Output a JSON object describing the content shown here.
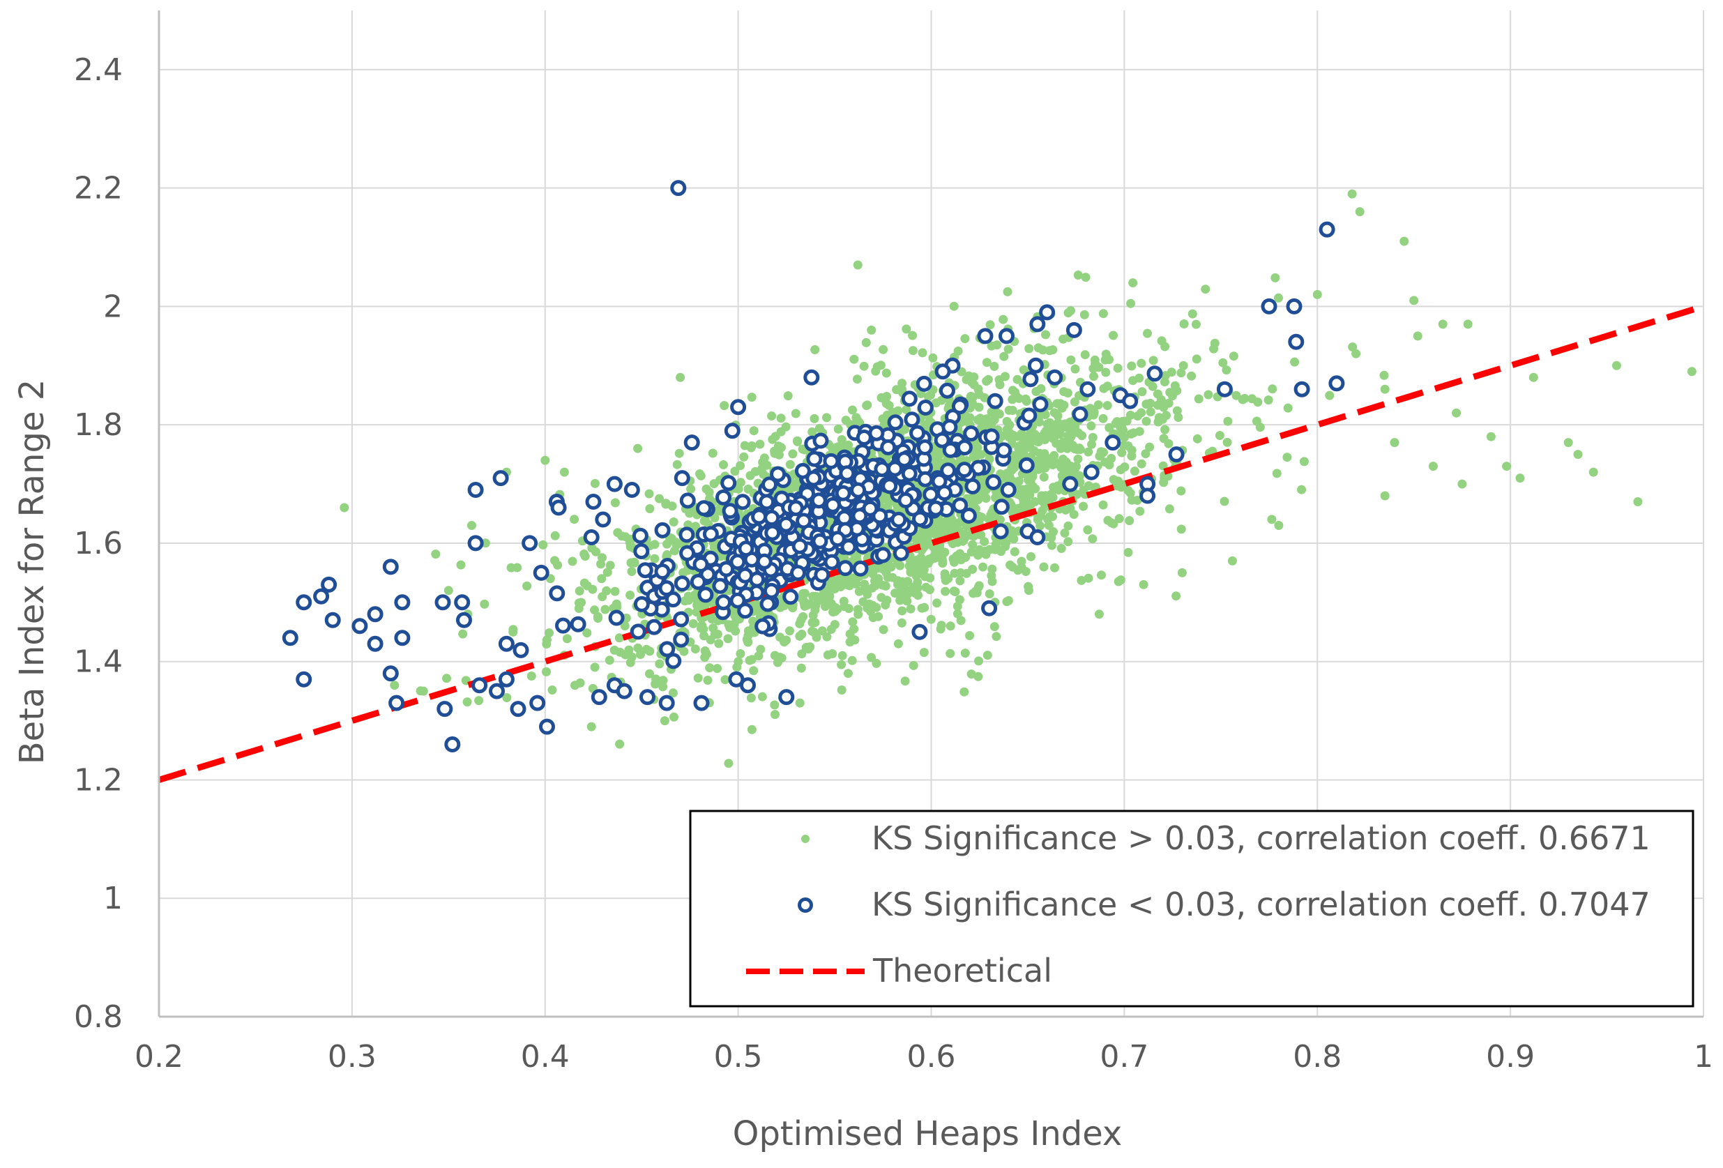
{
  "chart_data": {
    "type": "scatter",
    "title": "",
    "xlabel": "Optimised Heaps Index",
    "ylabel": "Beta Index for Range 2",
    "xlim": [
      0.2,
      1.0
    ],
    "ylim": [
      0.8,
      2.5
    ],
    "x_ticks": [
      "0.2",
      "0.3",
      "0.4",
      "0.5",
      "0.6",
      "0.7",
      "0.8",
      "0.9",
      "1"
    ],
    "y_ticks": [
      "0.8",
      "1",
      "1.2",
      "1.4",
      "1.6",
      "1.8",
      "2",
      "2.2",
      "2.4"
    ],
    "grid": true,
    "legend_position": "bottom-right",
    "series": [
      {
        "name": "KS Significance > 0.03, correlation coeff. 0.6671",
        "marker": "filled-circle",
        "color": "#92d280",
        "generated_cloud": {
          "count": 2600,
          "x_center": 0.575,
          "x_spread": 0.075,
          "slope": 1.05,
          "intercept": 1.05,
          "residual_spread": 0.1
        },
        "points": [
          [
            0.296,
            1.66
          ],
          [
            0.424,
            1.29
          ],
          [
            0.462,
            1.3
          ],
          [
            0.562,
            2.07
          ],
          [
            0.569,
            1.96
          ],
          [
            0.818,
            2.19
          ],
          [
            0.822,
            2.16
          ],
          [
            0.835,
            1.86
          ],
          [
            0.845,
            2.11
          ],
          [
            0.85,
            2.01
          ],
          [
            0.852,
            1.95
          ],
          [
            0.865,
            1.97
          ],
          [
            0.872,
            1.82
          ],
          [
            0.878,
            1.97
          ],
          [
            0.89,
            1.78
          ],
          [
            0.898,
            1.73
          ],
          [
            0.905,
            1.71
          ],
          [
            0.912,
            1.88
          ],
          [
            0.93,
            1.77
          ],
          [
            0.935,
            1.75
          ],
          [
            0.943,
            1.72
          ],
          [
            0.955,
            1.9
          ],
          [
            0.966,
            1.67
          ],
          [
            0.994,
            1.89
          ],
          [
            0.835,
            1.68
          ],
          [
            0.86,
            1.73
          ],
          [
            0.875,
            1.7
          ],
          [
            0.82,
            1.92
          ],
          [
            0.8,
            2.02
          ],
          [
            0.84,
            1.77
          ],
          [
            0.687,
            1.48
          ],
          [
            0.71,
            1.53
          ],
          [
            0.73,
            1.55
          ],
          [
            0.756,
            1.57
          ],
          [
            0.78,
            1.63
          ],
          [
            0.61,
            1.46
          ],
          [
            0.633,
            1.5
          ],
          [
            0.583,
            1.43
          ],
          [
            0.557,
            1.38
          ],
          [
            0.532,
            1.33
          ],
          [
            0.4,
            1.74
          ],
          [
            0.38,
            1.72
          ],
          [
            0.362,
            1.63
          ],
          [
            0.448,
            1.76
          ],
          [
            0.47,
            1.88
          ],
          [
            0.322,
            1.36
          ],
          [
            0.337,
            1.35
          ],
          [
            0.36,
            1.48
          ],
          [
            0.35,
            1.52
          ],
          [
            0.41,
            1.72
          ]
        ]
      },
      {
        "name": "KS Significance < 0.03, correlation coeff. 0.7047",
        "marker": "open-circle",
        "color": "#1f4e96",
        "generated_cloud": {
          "count": 430,
          "x_center": 0.545,
          "x_spread": 0.045,
          "slope": 1.5,
          "intercept": 0.83,
          "residual_spread": 0.06
        },
        "points": [
          [
            0.469,
            2.2
          ],
          [
            0.805,
            2.13
          ],
          [
            0.775,
            2.0
          ],
          [
            0.788,
            2.0
          ],
          [
            0.789,
            1.94
          ],
          [
            0.81,
            1.87
          ],
          [
            0.792,
            1.86
          ],
          [
            0.752,
            1.86
          ],
          [
            0.727,
            1.75
          ],
          [
            0.712,
            1.7
          ],
          [
            0.712,
            1.68
          ],
          [
            0.268,
            1.44
          ],
          [
            0.275,
            1.5
          ],
          [
            0.284,
            1.51
          ],
          [
            0.288,
            1.53
          ],
          [
            0.29,
            1.47
          ],
          [
            0.275,
            1.37
          ],
          [
            0.304,
            1.46
          ],
          [
            0.312,
            1.48
          ],
          [
            0.312,
            1.43
          ],
          [
            0.32,
            1.56
          ],
          [
            0.326,
            1.5
          ],
          [
            0.326,
            1.44
          ],
          [
            0.32,
            1.38
          ],
          [
            0.323,
            1.33
          ],
          [
            0.347,
            1.5
          ],
          [
            0.357,
            1.5
          ],
          [
            0.358,
            1.47
          ],
          [
            0.348,
            1.32
          ],
          [
            0.352,
            1.26
          ],
          [
            0.364,
            1.69
          ],
          [
            0.377,
            1.71
          ],
          [
            0.364,
            1.6
          ],
          [
            0.366,
            1.36
          ],
          [
            0.375,
            1.35
          ],
          [
            0.38,
            1.37
          ],
          [
            0.386,
            1.32
          ],
          [
            0.396,
            1.33
          ],
          [
            0.401,
            1.29
          ],
          [
            0.38,
            1.43
          ],
          [
            0.392,
            1.6
          ],
          [
            0.398,
            1.55
          ],
          [
            0.406,
            1.67
          ],
          [
            0.407,
            1.66
          ],
          [
            0.425,
            1.67
          ],
          [
            0.43,
            1.64
          ],
          [
            0.436,
            1.7
          ],
          [
            0.445,
            1.69
          ],
          [
            0.424,
            1.61
          ],
          [
            0.428,
            1.34
          ],
          [
            0.436,
            1.36
          ],
          [
            0.441,
            1.35
          ],
          [
            0.453,
            1.34
          ],
          [
            0.463,
            1.33
          ],
          [
            0.481,
            1.33
          ],
          [
            0.499,
            1.37
          ],
          [
            0.505,
            1.36
          ],
          [
            0.525,
            1.34
          ],
          [
            0.594,
            1.45
          ],
          [
            0.63,
            1.49
          ],
          [
            0.636,
            1.62
          ],
          [
            0.65,
            1.62
          ],
          [
            0.655,
            1.61
          ],
          [
            0.64,
            1.69
          ],
          [
            0.672,
            1.7
          ],
          [
            0.683,
            1.72
          ],
          [
            0.694,
            1.77
          ],
          [
            0.681,
            1.86
          ],
          [
            0.698,
            1.85
          ],
          [
            0.703,
            1.84
          ],
          [
            0.655,
            1.97
          ],
          [
            0.66,
            1.99
          ],
          [
            0.674,
            1.96
          ],
          [
            0.639,
            1.95
          ],
          [
            0.628,
            1.95
          ],
          [
            0.664,
            1.88
          ],
          [
            0.611,
            1.9
          ],
          [
            0.606,
            1.89
          ],
          [
            0.538,
            1.88
          ],
          [
            0.5,
            1.83
          ],
          [
            0.497,
            1.79
          ],
          [
            0.476,
            1.77
          ],
          [
            0.471,
            1.71
          ]
        ]
      },
      {
        "name": "Theoretical",
        "marker": "dashed-line",
        "color": "#ff0000",
        "x": [
          0.2,
          1.0
        ],
        "y": [
          1.2,
          2.0
        ]
      }
    ]
  }
}
